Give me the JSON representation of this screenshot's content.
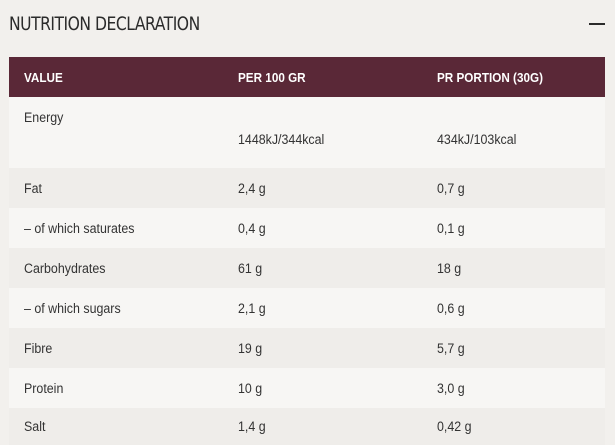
{
  "section": {
    "title": "NUTRITION DECLARATION",
    "collapse_icon": "minus-icon"
  },
  "table": {
    "headers": [
      "VALUE",
      "PER 100 GR",
      "PR PORTION (30G)"
    ],
    "rows": [
      [
        "Energy",
        "1448kJ/344kcal",
        "434kJ/103kcal"
      ],
      [
        "Fat",
        "2,4 g",
        "0,7 g"
      ],
      [
        "– of which saturates",
        "0,4 g",
        "0,1 g"
      ],
      [
        "Carbohydrates",
        "61 g",
        "18 g"
      ],
      [
        "– of which sugars",
        "2,1 g",
        "0,6 g"
      ],
      [
        "Fibre",
        "19 g",
        "5,7 g"
      ],
      [
        "Protein",
        "10 g",
        "3,0 g"
      ],
      [
        "Salt",
        "1,4 g",
        "0,42 g"
      ]
    ]
  },
  "colors": {
    "header_bg": "#5a2837",
    "header_text": "#ffffff",
    "page_bg": "#f2f0ed",
    "row_alt_bg": "#f7f6f4",
    "text": "#333333"
  }
}
